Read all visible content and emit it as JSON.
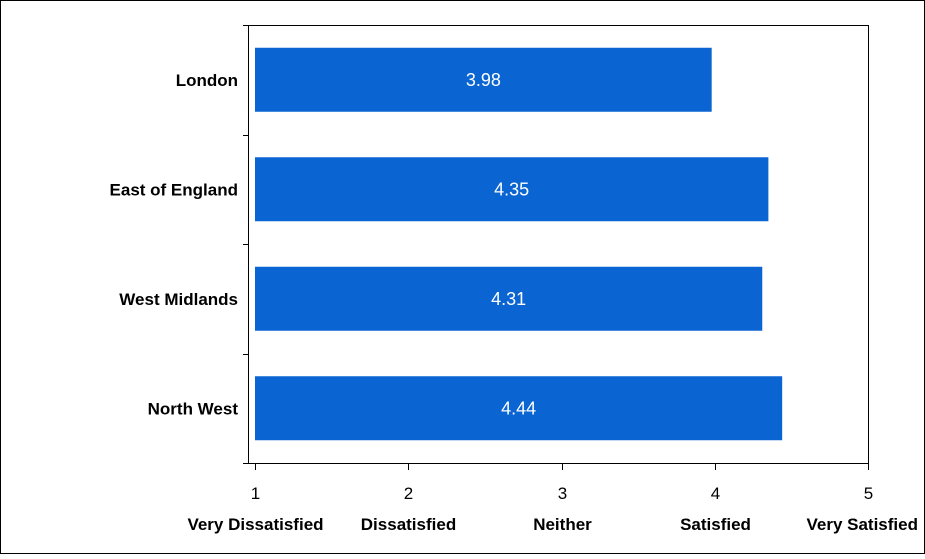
{
  "chart_data": {
    "type": "bar",
    "orientation": "horizontal",
    "categories": [
      "London",
      "East of England",
      "West Midlands",
      "North West"
    ],
    "values": [
      3.98,
      4.35,
      4.31,
      4.44
    ],
    "data_labels": [
      "3.98",
      "4.35",
      "4.31",
      "4.44"
    ],
    "xlim": [
      1,
      5
    ],
    "x_ticks": [
      {
        "value": 1,
        "label": "1",
        "word": "Very Dissatisfied"
      },
      {
        "value": 2,
        "label": "2",
        "word": "Dissatisfied"
      },
      {
        "value": 3,
        "label": "3",
        "word": "Neither"
      },
      {
        "value": 4,
        "label": "4",
        "word": "Satisfied"
      },
      {
        "value": 5,
        "label": "5",
        "word": "Very Satisfied"
      }
    ],
    "title": "",
    "xlabel": "",
    "ylabel": "",
    "grid": false,
    "legend": false,
    "colors": {
      "bar": "#0a64d2",
      "bar_label": "#ffffff",
      "axis": "#000000",
      "frame": "#000000"
    }
  }
}
